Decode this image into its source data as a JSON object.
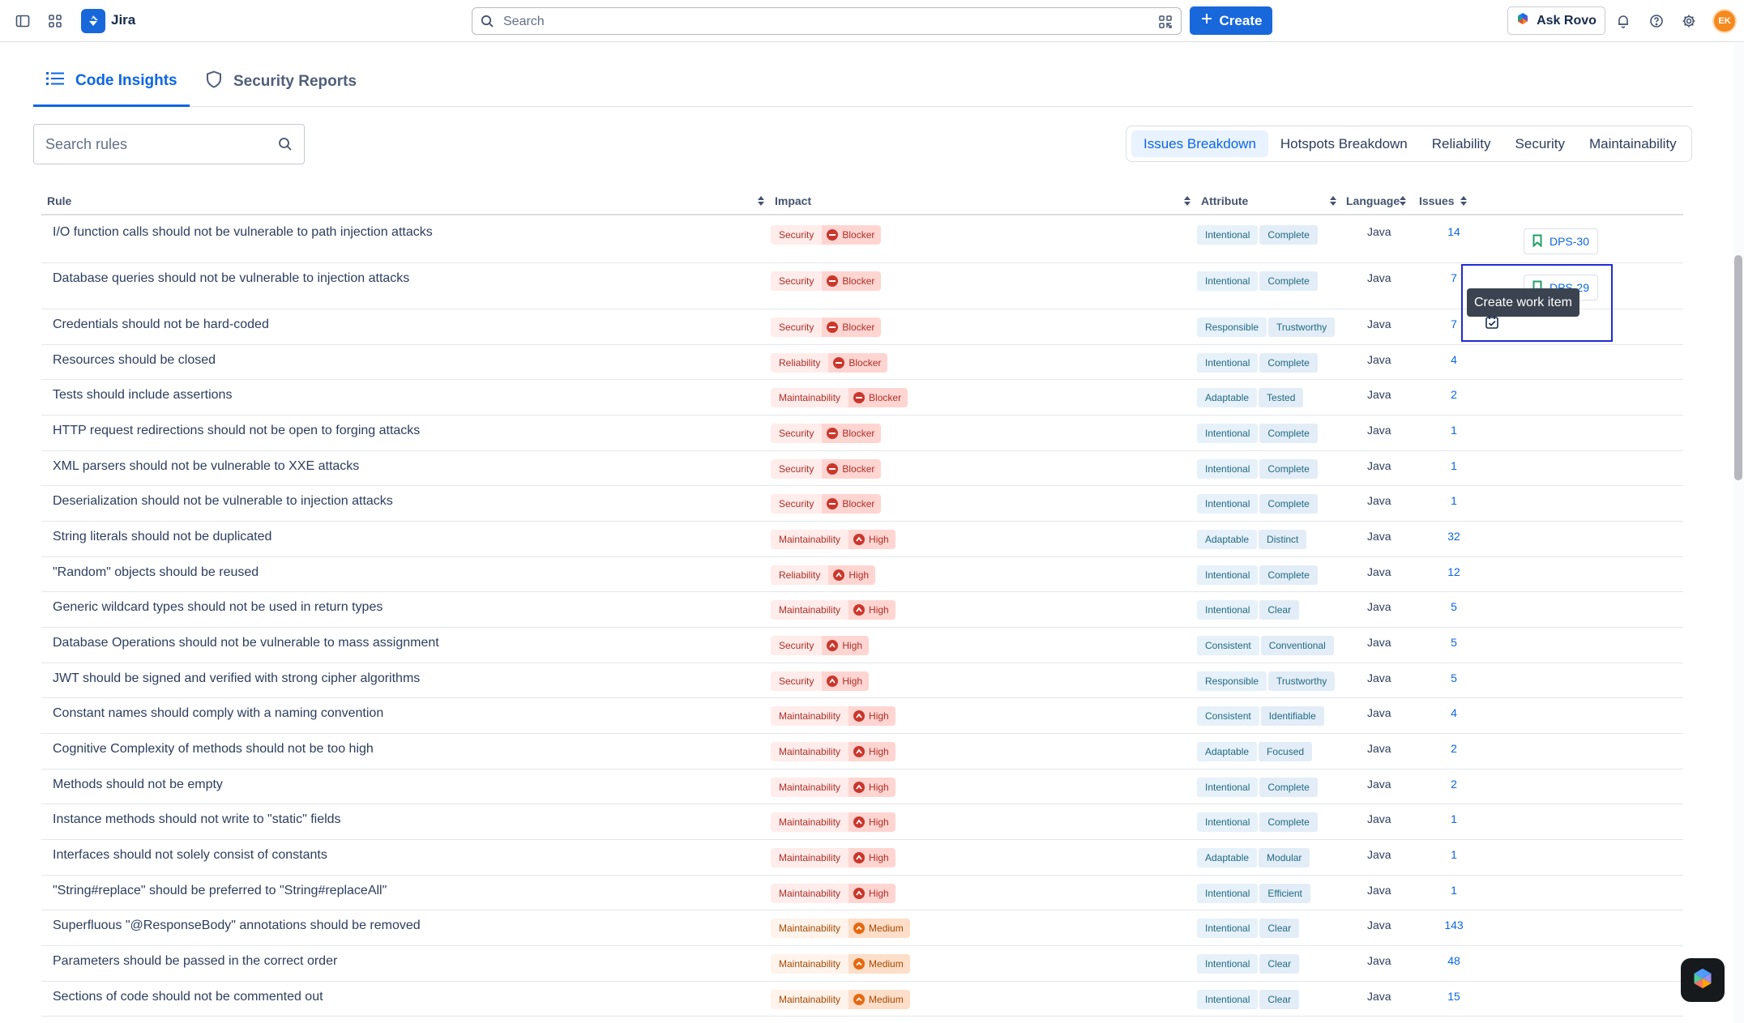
{
  "app": {
    "name": "Jira"
  },
  "top_nav": {
    "search_placeholder": "Search",
    "create_label": "Create",
    "rovo_label": "Ask Rovo",
    "avatar_initials": "EK"
  },
  "tabs": [
    {
      "label": "Code Insights"
    },
    {
      "label": "Security Reports"
    }
  ],
  "rule_search": {
    "placeholder": "Search rules"
  },
  "segments": [
    {
      "label": "Issues Breakdown"
    },
    {
      "label": "Hotspots Breakdown"
    },
    {
      "label": "Reliability"
    },
    {
      "label": "Security"
    },
    {
      "label": "Maintainability"
    }
  ],
  "table": {
    "headers": {
      "rule": "Rule",
      "impact": "Impact",
      "attribute": "Attribute",
      "language": "Language",
      "issues": "Issues"
    },
    "rows": [
      {
        "rule": "I/O function calls should not be vulnerable to path injection attacks",
        "quality": "Security",
        "severity": "Blocker",
        "attr1": "Intentional",
        "attr2": "Complete",
        "language": "Java",
        "issues": "14",
        "work_item": "DPS-30"
      },
      {
        "rule": "Database queries should not be vulnerable to injection attacks",
        "quality": "Security",
        "severity": "Blocker",
        "attr1": "Intentional",
        "attr2": "Complete",
        "language": "Java",
        "issues": "7",
        "work_item": "DPS-29"
      },
      {
        "rule": "Credentials should not be hard-coded",
        "quality": "Security",
        "severity": "Blocker",
        "attr1": "Responsible",
        "attr2": "Trustworthy",
        "language": "Java",
        "issues": "7"
      },
      {
        "rule": "Resources should be closed",
        "quality": "Reliability",
        "severity": "Blocker",
        "attr1": "Intentional",
        "attr2": "Complete",
        "language": "Java",
        "issues": "4"
      },
      {
        "rule": "Tests should include assertions",
        "quality": "Maintainability",
        "severity": "Blocker",
        "attr1": "Adaptable",
        "attr2": "Tested",
        "language": "Java",
        "issues": "2"
      },
      {
        "rule": "HTTP request redirections should not be open to forging attacks",
        "quality": "Security",
        "severity": "Blocker",
        "attr1": "Intentional",
        "attr2": "Complete",
        "language": "Java",
        "issues": "1"
      },
      {
        "rule": "XML parsers should not be vulnerable to XXE attacks",
        "quality": "Security",
        "severity": "Blocker",
        "attr1": "Intentional",
        "attr2": "Complete",
        "language": "Java",
        "issues": "1"
      },
      {
        "rule": "Deserialization should not be vulnerable to injection attacks",
        "quality": "Security",
        "severity": "Blocker",
        "attr1": "Intentional",
        "attr2": "Complete",
        "language": "Java",
        "issues": "1"
      },
      {
        "rule": "String literals should not be duplicated",
        "quality": "Maintainability",
        "severity": "High",
        "attr1": "Adaptable",
        "attr2": "Distinct",
        "language": "Java",
        "issues": "32"
      },
      {
        "rule": "\"Random\" objects should be reused",
        "quality": "Reliability",
        "severity": "High",
        "attr1": "Intentional",
        "attr2": "Complete",
        "language": "Java",
        "issues": "12"
      },
      {
        "rule": "Generic wildcard types should not be used in return types",
        "quality": "Maintainability",
        "severity": "High",
        "attr1": "Intentional",
        "attr2": "Clear",
        "language": "Java",
        "issues": "5"
      },
      {
        "rule": "Database Operations should not be vulnerable to mass assignment",
        "quality": "Security",
        "severity": "High",
        "attr1": "Consistent",
        "attr2": "Conventional",
        "language": "Java",
        "issues": "5"
      },
      {
        "rule": "JWT should be signed and verified with strong cipher algorithms",
        "quality": "Security",
        "severity": "High",
        "attr1": "Responsible",
        "attr2": "Trustworthy",
        "language": "Java",
        "issues": "5"
      },
      {
        "rule": "Constant names should comply with a naming convention",
        "quality": "Maintainability",
        "severity": "High",
        "attr1": "Consistent",
        "attr2": "Identifiable",
        "language": "Java",
        "issues": "4"
      },
      {
        "rule": "Cognitive Complexity of methods should not be too high",
        "quality": "Maintainability",
        "severity": "High",
        "attr1": "Adaptable",
        "attr2": "Focused",
        "language": "Java",
        "issues": "2"
      },
      {
        "rule": "Methods should not be empty",
        "quality": "Maintainability",
        "severity": "High",
        "attr1": "Intentional",
        "attr2": "Complete",
        "language": "Java",
        "issues": "2"
      },
      {
        "rule": "Instance methods should not write to \"static\" fields",
        "quality": "Maintainability",
        "severity": "High",
        "attr1": "Intentional",
        "attr2": "Complete",
        "language": "Java",
        "issues": "1"
      },
      {
        "rule": "Interfaces should not solely consist of constants",
        "quality": "Maintainability",
        "severity": "High",
        "attr1": "Adaptable",
        "attr2": "Modular",
        "language": "Java",
        "issues": "1"
      },
      {
        "rule": "\"String#replace\" should be preferred to \"String#replaceAll\"",
        "quality": "Maintainability",
        "severity": "High",
        "attr1": "Intentional",
        "attr2": "Efficient",
        "language": "Java",
        "issues": "1"
      },
      {
        "rule": "Superfluous \"@ResponseBody\" annotations should be removed",
        "quality": "Maintainability",
        "severity": "Medium",
        "attr1": "Intentional",
        "attr2": "Clear",
        "language": "Java",
        "issues": "143"
      },
      {
        "rule": "Parameters should be passed in the correct order",
        "quality": "Maintainability",
        "severity": "Medium",
        "attr1": "Intentional",
        "attr2": "Clear",
        "language": "Java",
        "issues": "48"
      },
      {
        "rule": "Sections of code should not be commented out",
        "quality": "Maintainability",
        "severity": "Medium",
        "attr1": "Intentional",
        "attr2": "Clear",
        "language": "Java",
        "issues": "15"
      }
    ]
  },
  "tooltip": {
    "text": "Create work item"
  },
  "colors": {
    "brand": "#1868db",
    "blocker_text": "#ae2e24",
    "blocker_bg": "#ffeceb",
    "medium_text": "#a54800",
    "medium_bg": "#fff3eb",
    "attribute_text": "#206a83",
    "attribute_bg": "#e7f1fa",
    "link": "#0c66e4"
  }
}
